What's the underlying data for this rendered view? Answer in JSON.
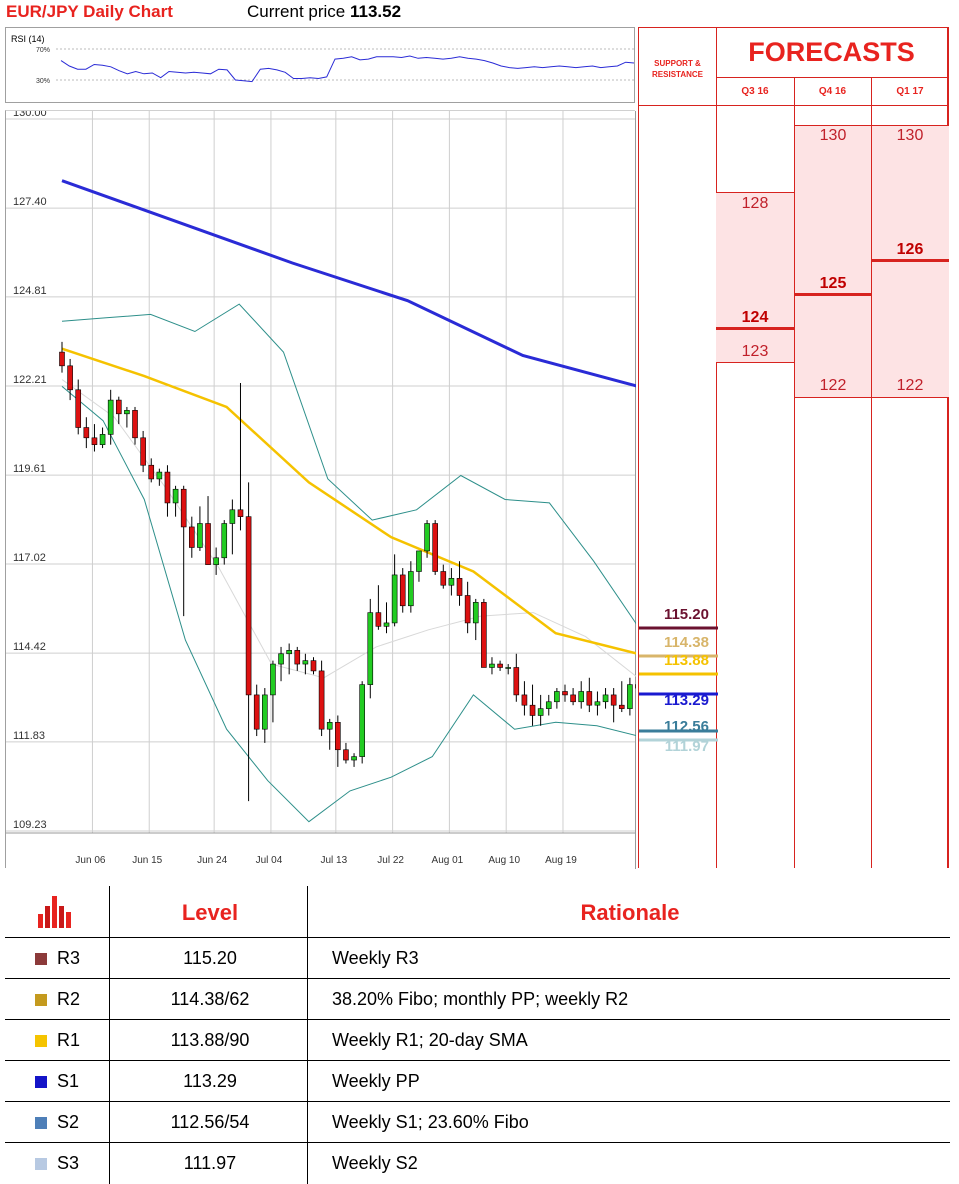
{
  "header": {
    "title": "EUR/JPY Daily Chart",
    "current_price_label": "Current price",
    "current_price": "113.52"
  },
  "colors": {
    "accent_red": "#e8231f",
    "forecast_band": "#fde3e4",
    "sma_long": "#2a2bd6",
    "sma_short": "#f5c200",
    "bollinger": "#2d8f8a",
    "bull_candle": "#22cc22",
    "bear_candle": "#dd1111"
  },
  "chart_data": {
    "type": "candlestick",
    "rsi": {
      "label": "RSI (14)",
      "levels": [
        "70%",
        "30%"
      ],
      "values": [
        55,
        48,
        44,
        44,
        50,
        49,
        47,
        42,
        38,
        41,
        38,
        39,
        33,
        41,
        40,
        39,
        40,
        39,
        38,
        44,
        43,
        30,
        29,
        28,
        44,
        45,
        43,
        40,
        32,
        32,
        33,
        32,
        34,
        57,
        58,
        60,
        56,
        57,
        60,
        60,
        60,
        59,
        61,
        58,
        59,
        58,
        57,
        58,
        60,
        58,
        57,
        55,
        52,
        48,
        46,
        45,
        46,
        47,
        46,
        47,
        48,
        47,
        46,
        47,
        48,
        46,
        47,
        48,
        53,
        52
      ]
    },
    "x_tick_labels": [
      "Jun 06",
      "Jun 15",
      "Jun 24",
      "Jul 04",
      "Jul 13",
      "Jul 22",
      "Aug 01",
      "Aug 10",
      "Aug 19"
    ],
    "y_tick_labels": [
      "130.00",
      "127.40",
      "124.81",
      "122.21",
      "119.61",
      "117.02",
      "114.42",
      "111.83",
      "109.23"
    ],
    "ylim": [
      108.8,
      130.3
    ],
    "candles": [
      [
        123.2,
        123.5,
        122.6,
        122.8
      ],
      [
        122.8,
        123.0,
        121.8,
        122.1
      ],
      [
        122.1,
        122.4,
        120.8,
        121.0
      ],
      [
        121.0,
        121.3,
        120.4,
        120.7
      ],
      [
        120.7,
        121.1,
        120.3,
        120.5
      ],
      [
        120.5,
        121.0,
        120.4,
        120.8
      ],
      [
        120.8,
        122.1,
        120.5,
        121.8
      ],
      [
        121.8,
        121.9,
        121.1,
        121.4
      ],
      [
        121.4,
        121.6,
        121.0,
        121.5
      ],
      [
        121.5,
        121.6,
        120.5,
        120.7
      ],
      [
        120.7,
        120.9,
        119.7,
        119.9
      ],
      [
        119.9,
        120.1,
        119.4,
        119.5
      ],
      [
        119.5,
        119.8,
        119.3,
        119.7
      ],
      [
        119.7,
        119.9,
        118.4,
        118.8
      ],
      [
        118.8,
        119.3,
        118.4,
        119.2
      ],
      [
        119.2,
        119.3,
        115.5,
        118.1
      ],
      [
        118.1,
        118.4,
        117.2,
        117.5
      ],
      [
        117.5,
        118.7,
        117.4,
        118.2
      ],
      [
        118.2,
        119.0,
        117.0,
        117.0
      ],
      [
        117.0,
        117.5,
        116.7,
        117.2
      ],
      [
        117.2,
        118.3,
        117.0,
        118.2
      ],
      [
        118.2,
        118.9,
        117.3,
        118.6
      ],
      [
        118.6,
        122.3,
        118.0,
        118.4
      ],
      [
        118.4,
        119.4,
        110.1,
        113.2
      ],
      [
        113.2,
        113.5,
        112.0,
        112.2
      ],
      [
        112.2,
        113.4,
        111.8,
        113.2
      ],
      [
        113.2,
        114.2,
        112.4,
        114.1
      ],
      [
        114.1,
        114.6,
        113.6,
        114.4
      ],
      [
        114.4,
        114.7,
        113.8,
        114.5
      ],
      [
        114.5,
        114.6,
        113.9,
        114.1
      ],
      [
        114.1,
        114.4,
        113.8,
        114.2
      ],
      [
        114.2,
        114.3,
        113.8,
        113.9
      ],
      [
        113.9,
        114.2,
        112.0,
        112.2
      ],
      [
        112.2,
        112.5,
        111.6,
        112.4
      ],
      [
        112.4,
        112.6,
        111.1,
        111.6
      ],
      [
        111.6,
        111.8,
        111.2,
        111.3
      ],
      [
        111.3,
        111.5,
        111.1,
        111.4
      ],
      [
        111.4,
        113.6,
        111.2,
        113.5
      ],
      [
        113.5,
        116.0,
        113.1,
        115.6
      ],
      [
        115.6,
        116.4,
        115.1,
        115.2
      ],
      [
        115.2,
        115.9,
        115.0,
        115.3
      ],
      [
        115.3,
        117.3,
        115.2,
        116.7
      ],
      [
        116.7,
        116.9,
        115.6,
        115.8
      ],
      [
        115.8,
        117.1,
        115.6,
        116.8
      ],
      [
        116.8,
        117.4,
        116.5,
        117.4
      ],
      [
        117.4,
        118.3,
        117.2,
        118.2
      ],
      [
        118.2,
        118.3,
        116.7,
        116.8
      ],
      [
        116.8,
        117.0,
        116.3,
        116.4
      ],
      [
        116.4,
        116.9,
        116.1,
        116.6
      ],
      [
        116.6,
        117.1,
        115.8,
        116.1
      ],
      [
        116.1,
        116.5,
        115.0,
        115.3
      ],
      [
        115.3,
        116.0,
        114.8,
        115.9
      ],
      [
        115.9,
        116.0,
        114.0,
        114.0
      ],
      [
        114.0,
        114.3,
        113.8,
        114.1
      ],
      [
        114.1,
        114.2,
        113.9,
        114.0
      ],
      [
        114.0,
        114.1,
        113.8,
        114.0
      ],
      [
        114.0,
        114.4,
        113.0,
        113.2
      ],
      [
        113.2,
        113.6,
        112.6,
        112.9
      ],
      [
        112.9,
        113.5,
        112.3,
        112.6
      ],
      [
        112.6,
        113.2,
        112.3,
        112.8
      ],
      [
        112.8,
        113.2,
        112.6,
        113.0
      ],
      [
        113.0,
        113.4,
        112.8,
        113.3
      ],
      [
        113.3,
        113.5,
        113.0,
        113.2
      ],
      [
        113.2,
        113.4,
        112.9,
        113.0
      ],
      [
        113.0,
        113.6,
        112.8,
        113.3
      ],
      [
        113.3,
        113.7,
        112.7,
        112.9
      ],
      [
        112.9,
        113.3,
        112.6,
        113.0
      ],
      [
        113.0,
        113.4,
        112.8,
        113.2
      ],
      [
        113.2,
        113.4,
        112.4,
        112.9
      ],
      [
        112.9,
        113.6,
        112.7,
        112.8
      ],
      [
        112.8,
        113.7,
        112.6,
        113.5
      ],
      [
        113.5,
        113.7,
        113.3,
        113.4
      ]
    ],
    "sma_200": [
      128.2,
      127.0,
      125.8,
      124.7,
      123.1,
      122.2
    ],
    "sma_20": [
      123.3,
      122.5,
      121.6,
      119.4,
      117.8,
      116.8,
      115.0,
      114.4
    ],
    "bb_upper": [
      124.1,
      124.2,
      124.3,
      123.8,
      124.6,
      123.2,
      119.5,
      118.3,
      118.6,
      119.6,
      118.9,
      118.8,
      117.1,
      115.2
    ],
    "bb_lower": [
      122.2,
      121.2,
      118.9,
      114.8,
      112.2,
      110.7,
      109.5,
      110.4,
      110.8,
      111.4,
      113.2,
      112.2,
      112.4,
      112.3,
      112.0
    ],
    "bb_mid": [
      122.4,
      121.3,
      119.2,
      116.9,
      114.1,
      113.7,
      114.6,
      115.1,
      115.5,
      115.6,
      114.9,
      113.7
    ]
  },
  "support_resistance": {
    "header": [
      "SUPPORT &",
      "RESISTANCE"
    ],
    "levels": [
      {
        "value": "115.20",
        "color": "#6b1230"
      },
      {
        "value": "114.38",
        "color": "#d8b56a"
      },
      {
        "value": "113.88",
        "color": "#f5c200"
      },
      {
        "value": "113.29",
        "color": "#1a1ad0"
      },
      {
        "value": "112.56",
        "color": "#3a7d9a"
      },
      {
        "value": "111.97",
        "color": "#b2d3d8"
      }
    ]
  },
  "forecasts": {
    "title": "FORECASTS",
    "quarters": [
      "Q3 16",
      "Q4 16",
      "Q1 17"
    ],
    "q3": {
      "high": "128",
      "mid": "124",
      "low": "123"
    },
    "q4": {
      "high": "130",
      "mid": "125",
      "low": "122"
    },
    "q1": {
      "high": "130",
      "mid": "126",
      "low": "122"
    }
  },
  "table": {
    "header_level": "Level",
    "header_rationale": "Rationale",
    "rows": [
      {
        "code": "R3",
        "level": "115.20",
        "rationale": "Weekly R3",
        "color": "#8c3a3a"
      },
      {
        "code": "R2",
        "level": "114.38/62",
        "rationale": "38.20% Fibo; monthly PP; weekly R2",
        "color": "#c49a1e"
      },
      {
        "code": "R1",
        "level": "113.88/90",
        "rationale": "Weekly R1; 20-day SMA",
        "color": "#f5c400"
      },
      {
        "code": "S1",
        "level": "113.29",
        "rationale": "Weekly PP",
        "color": "#1414c8"
      },
      {
        "code": "S2",
        "level": "112.56/54",
        "rationale": "Weekly S1; 23.60% Fibo",
        "color": "#4e7fb8"
      },
      {
        "code": "S3",
        "level": "111.97",
        "rationale": "Weekly S2",
        "color": "#b7c9e2"
      }
    ]
  }
}
